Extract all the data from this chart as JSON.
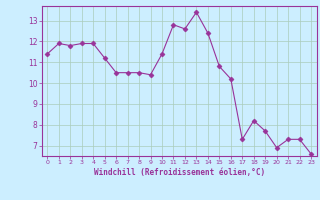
{
  "x": [
    0,
    1,
    2,
    3,
    4,
    5,
    6,
    7,
    8,
    9,
    10,
    11,
    12,
    13,
    14,
    15,
    16,
    17,
    18,
    19,
    20,
    21,
    22,
    23
  ],
  "y": [
    11.4,
    11.9,
    11.8,
    11.9,
    11.9,
    11.2,
    10.5,
    10.5,
    10.5,
    10.4,
    11.4,
    12.8,
    12.6,
    13.4,
    12.4,
    10.8,
    10.2,
    7.3,
    8.2,
    7.7,
    6.9,
    7.3,
    7.3,
    6.6
  ],
  "line_color": "#993399",
  "marker": "D",
  "marker_size": 2.5,
  "bg_color": "#cceeff",
  "grid_color": "#aaccbb",
  "xlabel": "Windchill (Refroidissement éolien,°C)",
  "xlabel_color": "#993399",
  "tick_color": "#993399",
  "axis_color": "#993399",
  "ylim": [
    6.5,
    13.7
  ],
  "xlim": [
    -0.5,
    23.5
  ],
  "yticks": [
    7,
    8,
    9,
    10,
    11,
    12,
    13
  ],
  "xticks": [
    0,
    1,
    2,
    3,
    4,
    5,
    6,
    7,
    8,
    9,
    10,
    11,
    12,
    13,
    14,
    15,
    16,
    17,
    18,
    19,
    20,
    21,
    22,
    23
  ]
}
